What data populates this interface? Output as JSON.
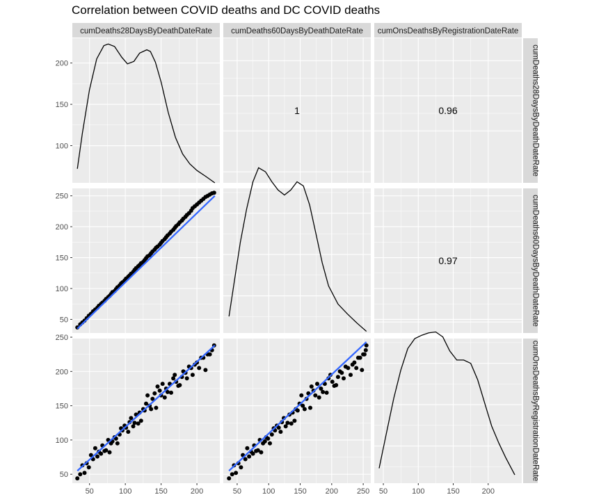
{
  "title": "Correlation between COVID deaths and DC COVID deaths",
  "variables": [
    "cumDeaths28DaysByDeathDateRate",
    "cumDeaths60DaysByDeathDateRate",
    "cumOnsDeathsByRegistrationDateRate"
  ],
  "x_ticks": [
    [
      "50",
      "100",
      "150",
      "200"
    ],
    [
      "50",
      "100",
      "150",
      "200",
      "250"
    ],
    [
      "50",
      "100",
      "150",
      "200"
    ]
  ],
  "y_ticks": [
    [
      "100",
      "150",
      "200"
    ],
    [
      "50",
      "100",
      "150",
      "200",
      "250"
    ],
    [
      "50",
      "100",
      "150",
      "200",
      "250"
    ]
  ],
  "colors": {
    "panel_bg": "#ebebeb",
    "strip_bg": "#d9d9d9",
    "grid": "#ffffff",
    "points": "#000000",
    "fit_line": "#3366ff"
  },
  "chart_data": {
    "type": "scatter",
    "subtype": "pairs-matrix",
    "title": "Correlation between COVID deaths and DC COVID deaths",
    "variables": [
      "cumDeaths28DaysByDeathDateRate",
      "cumDeaths60DaysByDeathDateRate",
      "cumOnsDeathsByRegistrationDateRate"
    ],
    "ranges": {
      "cumDeaths28DaysByDeathDateRate": [
        26,
        232
      ],
      "cumDeaths60DaysByDeathDateRate": [
        28,
        262
      ],
      "cumOnsDeathsByRegistrationDateRate": [
        37,
        248
      ]
    },
    "density_y_range": [
      55,
      230
    ],
    "correlations": [
      {
        "row": 0,
        "col": 1,
        "value": "1"
      },
      {
        "row": 0,
        "col": 2,
        "value": "0.96"
      },
      {
        "row": 1,
        "col": 2,
        "value": "0.97"
      }
    ],
    "fit_lines": [
      {
        "x": "cumDeaths28DaysByDeathDateRate",
        "y": "cumDeaths60DaysByDeathDateRate",
        "x_range": [
          33,
          225
        ],
        "y_range": [
          35,
          250
        ]
      },
      {
        "x": "cumDeaths28DaysByDeathDateRate",
        "y": "cumOnsDeathsByRegistrationDateRate",
        "x_range": [
          33,
          225
        ],
        "y_range": [
          55,
          238
        ]
      },
      {
        "x": "cumDeaths60DaysByDeathDateRate",
        "y": "cumOnsDeathsByRegistrationDateRate",
        "x_range": [
          37,
          255
        ],
        "y_range": [
          55,
          243
        ]
      }
    ],
    "densities": [
      {
        "variable": "cumDeaths28DaysByDeathDateRate",
        "x": [
          33,
          40,
          50,
          60,
          70,
          76,
          85,
          95,
          103,
          112,
          120,
          130,
          135,
          142,
          150,
          160,
          170,
          180,
          190,
          200,
          212,
          225
        ],
        "y": [
          72,
          115,
          168,
          205,
          221,
          223,
          220,
          207,
          199,
          202,
          212,
          216,
          214,
          201,
          177,
          140,
          110,
          90,
          78,
          70,
          63,
          55
        ]
      },
      {
        "variable": "cumDeaths60DaysByDeathDateRate",
        "x": [
          37,
          45,
          55,
          65,
          75,
          84,
          95,
          105,
          115,
          125,
          135,
          145,
          155,
          165,
          175,
          185,
          195,
          210,
          225,
          240,
          255
        ],
        "y": [
          75,
          115,
          165,
          205,
          238,
          255,
          250,
          238,
          228,
          222,
          228,
          238,
          233,
          210,
          175,
          140,
          112,
          90,
          78,
          67,
          57
        ]
      },
      {
        "variable": "cumOnsDeathsByRegistrationDateRate",
        "x": [
          44,
          55,
          65,
          75,
          85,
          95,
          105,
          115,
          125,
          135,
          145,
          155,
          165,
          175,
          185,
          195,
          205,
          215,
          225,
          238
        ],
        "y": [
          73,
          118,
          158,
          192,
          218,
          230,
          234,
          237,
          238,
          232,
          215,
          204,
          204,
          200,
          180,
          152,
          124,
          104,
          86,
          65
        ]
      }
    ],
    "points": {
      "x28": [
        33,
        37,
        40,
        43,
        46,
        49,
        52,
        55,
        58,
        61,
        63,
        66,
        68,
        71,
        73,
        76,
        78,
        80,
        82,
        85,
        87,
        89,
        92,
        94,
        96,
        99,
        101,
        104,
        106,
        108,
        111,
        113,
        115,
        118,
        120,
        122,
        125,
        127,
        129,
        131,
        134,
        136,
        138,
        141,
        143,
        145,
        148,
        150,
        152,
        155,
        157,
        159,
        162,
        164,
        167,
        169,
        171,
        174,
        176,
        179,
        181,
        184,
        186,
        189,
        192,
        194,
        197,
        200,
        203,
        206,
        209,
        212,
        215,
        218,
        221,
        224
      ],
      "x60": [
        37,
        42,
        45,
        48,
        52,
        56,
        59,
        63,
        66,
        69,
        72,
        75,
        77,
        80,
        83,
        86,
        88,
        91,
        94,
        96,
        99,
        102,
        105,
        108,
        110,
        113,
        116,
        119,
        121,
        124,
        127,
        130,
        133,
        136,
        138,
        141,
        143,
        146,
        149,
        152,
        154,
        157,
        160,
        163,
        166,
        168,
        171,
        174,
        177,
        180,
        183,
        186,
        189,
        192,
        195,
        198,
        201,
        204,
        207,
        210,
        213,
        216,
        219,
        222,
        226,
        230,
        233,
        236,
        239,
        242,
        245,
        248,
        250,
        252,
        254,
        255
      ],
      "ons": [
        44,
        50,
        63,
        52,
        66,
        60,
        78,
        72,
        88,
        76,
        83,
        80,
        92,
        84,
        85,
        100,
        82,
        95,
        98,
        104,
        102,
        95,
        108,
        117,
        114,
        121,
        118,
        112,
        126,
        132,
        120,
        125,
        137,
        124,
        140,
        128,
        145,
        143,
        153,
        165,
        150,
        145,
        160,
        168,
        147,
        178,
        172,
        165,
        182,
        162,
        175,
        170,
        182,
        169,
        190,
        195,
        185,
        179,
        180,
        192,
        200,
        198,
        190,
        207,
        205,
        195,
        210,
        213,
        205,
        220,
        220,
        202,
        225,
        225,
        231,
        238
      ]
    }
  }
}
